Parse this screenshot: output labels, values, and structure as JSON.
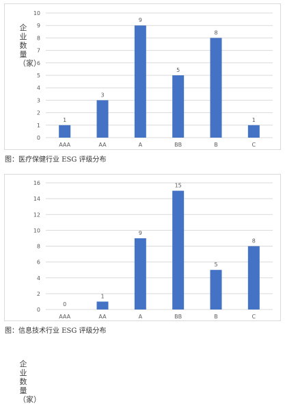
{
  "captions": [
    "图：医疗保健行业 ESG 评级分布",
    "图：信息技术行业 ESG 评级分布"
  ],
  "colors": {
    "bar": "#4472c4",
    "grid": "#d9d9d9",
    "tick_text": "#595959"
  },
  "chart_data": [
    {
      "type": "bar",
      "title": "",
      "xlabel": "",
      "ylabel": "企业数量（家）",
      "categories": [
        "AAA",
        "AA",
        "A",
        "BB",
        "B",
        "C"
      ],
      "values": [
        1,
        3,
        9,
        5,
        8,
        1
      ],
      "ylim": [
        0,
        10
      ],
      "yticks": [
        0,
        1,
        2,
        3,
        4,
        5,
        6,
        7,
        8,
        9,
        10
      ],
      "grid": true,
      "data_labels": true
    },
    {
      "type": "bar",
      "title": "",
      "xlabel": "",
      "ylabel": "企业数量（家）",
      "categories": [
        "AAA",
        "AA",
        "A",
        "BB",
        "B",
        "C"
      ],
      "values": [
        0,
        1,
        9,
        15,
        5,
        8
      ],
      "ylim": [
        0,
        16
      ],
      "yticks": [
        0,
        2,
        4,
        6,
        8,
        10,
        12,
        14,
        16
      ],
      "grid": true,
      "data_labels": true
    }
  ]
}
